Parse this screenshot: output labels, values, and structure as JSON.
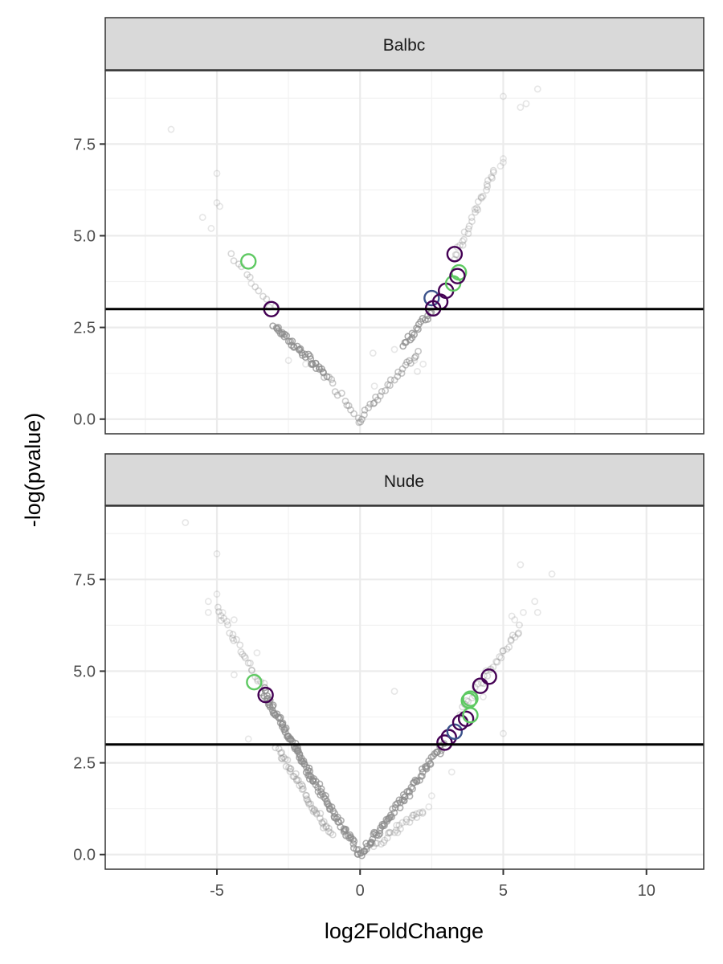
{
  "chart_data": {
    "type": "scatter",
    "xlabel": "log2FoldChange",
    "ylabel": "-log(pvalue)",
    "xlim": [
      -8.9,
      12
    ],
    "ylim": [
      -0.4,
      9.5
    ],
    "xticks": [
      -5,
      0,
      5,
      10
    ],
    "xtick_labels": [
      "-5",
      "0",
      "5",
      "10"
    ],
    "yticks": [
      0,
      2.5,
      5,
      7.5
    ],
    "ytick_labels": [
      "0.0",
      "2.5",
      "5.0",
      "7.5"
    ],
    "threshold_y": 3,
    "grid": true,
    "colors": {
      "background_points": "#8c8c8c",
      "highlight_purple": "#440154",
      "highlight_blue": "#3b528b",
      "highlight_green": "#5ec962",
      "threshold_line": "#000000",
      "strip_fill": "#d9d9d9"
    },
    "panels": [
      {
        "strip": "Balbc",
        "background_v": [
          {
            "x": [
              -4.5,
              -3.0
            ],
            "y": [
              4.5,
              3.0
            ],
            "n": 12,
            "alpha": 0.35
          },
          {
            "x": [
              -3.0,
              -1.2
            ],
            "y": [
              2.55,
              1.2
            ],
            "n": 40,
            "alpha": 0.75
          },
          {
            "x": [
              -1.2,
              0
            ],
            "y": [
              1.2,
              0
            ],
            "n": 14,
            "alpha": 0.45
          },
          {
            "x": [
              0,
              2.0
            ],
            "y": [
              0,
              1.8
            ],
            "n": 28,
            "alpha": 0.5
          },
          {
            "x": [
              1.5,
              2.5
            ],
            "y": [
              2.0,
              2.95
            ],
            "n": 18,
            "alpha": 0.75
          },
          {
            "x": [
              3.3,
              4.7
            ],
            "y": [
              4.4,
              6.8
            ],
            "n": 30,
            "alpha": 0.3
          }
        ],
        "background_points": [
          [
            -6.6,
            7.9
          ],
          [
            -5.0,
            6.7
          ],
          [
            -5.0,
            5.9
          ],
          [
            -4.9,
            5.8
          ],
          [
            -5.5,
            5.5
          ],
          [
            -5.2,
            5.2
          ],
          [
            -3.8,
            3.7
          ],
          [
            -2.5,
            1.6
          ],
          [
            -1.9,
            1.5
          ],
          [
            0.5,
            0.9
          ],
          [
            0.45,
            1.8
          ],
          [
            1.2,
            1.9
          ],
          [
            1.9,
            1.6
          ],
          [
            2.0,
            1.3
          ],
          [
            2.2,
            1.5
          ],
          [
            5.0,
            7.0
          ],
          [
            4.9,
            6.9
          ],
          [
            5.0,
            7.1
          ],
          [
            5.0,
            8.8
          ],
          [
            5.6,
            8.5
          ],
          [
            5.8,
            8.6
          ],
          [
            6.2,
            9.0
          ]
        ],
        "highlights": [
          {
            "x": -3.9,
            "y": 4.3,
            "color": "#5ec962"
          },
          {
            "x": -3.1,
            "y": 3.0,
            "color": "#440154"
          },
          {
            "x": 2.5,
            "y": 3.3,
            "color": "#3b528b"
          },
          {
            "x": 2.55,
            "y": 3.02,
            "color": "#440154"
          },
          {
            "x": 2.8,
            "y": 3.2,
            "color": "#440154"
          },
          {
            "x": 3.0,
            "y": 3.5,
            "color": "#440154"
          },
          {
            "x": 3.25,
            "y": 3.7,
            "color": "#5ec962"
          },
          {
            "x": 3.45,
            "y": 4.0,
            "color": "#5ec962"
          },
          {
            "x": 3.4,
            "y": 3.9,
            "color": "#440154"
          },
          {
            "x": 3.3,
            "y": 4.5,
            "color": "#440154"
          }
        ]
      },
      {
        "strip": "Nude",
        "background_v": [
          {
            "x": [
              -5.0,
              -3.4
            ],
            "y": [
              6.7,
              4.6
            ],
            "n": 26,
            "alpha": 0.3
          },
          {
            "x": [
              -3.4,
              -1.6
            ],
            "y": [
              4.5,
              2.0
            ],
            "n": 70,
            "alpha": 0.75
          },
          {
            "x": [
              -2.9,
              -1.0
            ],
            "y": [
              2.9,
              0.5
            ],
            "n": 50,
            "alpha": 0.35
          },
          {
            "x": [
              -1.6,
              0
            ],
            "y": [
              2.0,
              0
            ],
            "n": 50,
            "alpha": 0.7
          },
          {
            "x": [
              0,
              1.6
            ],
            "y": [
              0,
              1.6
            ],
            "n": 45,
            "alpha": 0.7
          },
          {
            "x": [
              1.6,
              2.9
            ],
            "y": [
              1.6,
              3.0
            ],
            "n": 35,
            "alpha": 0.7
          },
          {
            "x": [
              0.4,
              2.2
            ],
            "y": [
              0.2,
              1.2
            ],
            "n": 30,
            "alpha": 0.3
          },
          {
            "x": [
              3.5,
              5.6
            ],
            "y": [
              3.9,
              6.2
            ],
            "n": 34,
            "alpha": 0.3
          }
        ],
        "background_points": [
          [
            -6.1,
            9.05
          ],
          [
            -5.0,
            8.2
          ],
          [
            -5.0,
            7.1
          ],
          [
            -5.3,
            6.9
          ],
          [
            -4.8,
            6.6
          ],
          [
            -5.3,
            6.6
          ],
          [
            -4.4,
            6.4
          ],
          [
            -3.6,
            5.5
          ],
          [
            -4.4,
            4.9
          ],
          [
            -3.9,
            3.15
          ],
          [
            1.2,
            4.45
          ],
          [
            3.2,
            2.25
          ],
          [
            2.4,
            1.3
          ],
          [
            2.5,
            1.6
          ],
          [
            5.0,
            3.3
          ],
          [
            4.3,
            4.3
          ],
          [
            5.4,
            6.4
          ],
          [
            5.3,
            6.5
          ],
          [
            5.7,
            6.6
          ],
          [
            5.6,
            7.9
          ],
          [
            6.1,
            6.9
          ],
          [
            6.7,
            7.65
          ],
          [
            6.2,
            6.6
          ]
        ],
        "highlights": [
          {
            "x": -3.7,
            "y": 4.7,
            "color": "#5ec962"
          },
          {
            "x": -3.3,
            "y": 4.35,
            "color": "#440154"
          },
          {
            "x": 2.95,
            "y": 3.05,
            "color": "#440154"
          },
          {
            "x": 3.1,
            "y": 3.2,
            "color": "#440154"
          },
          {
            "x": 3.3,
            "y": 3.35,
            "color": "#3b528b"
          },
          {
            "x": 3.5,
            "y": 3.6,
            "color": "#440154"
          },
          {
            "x": 3.7,
            "y": 3.7,
            "color": "#440154"
          },
          {
            "x": 3.85,
            "y": 3.8,
            "color": "#5ec962"
          },
          {
            "x": 3.8,
            "y": 4.2,
            "color": "#5ec962"
          },
          {
            "x": 3.85,
            "y": 4.25,
            "color": "#5ec962"
          },
          {
            "x": 4.2,
            "y": 4.6,
            "color": "#440154"
          },
          {
            "x": 4.5,
            "y": 4.85,
            "color": "#440154"
          }
        ]
      }
    ]
  }
}
